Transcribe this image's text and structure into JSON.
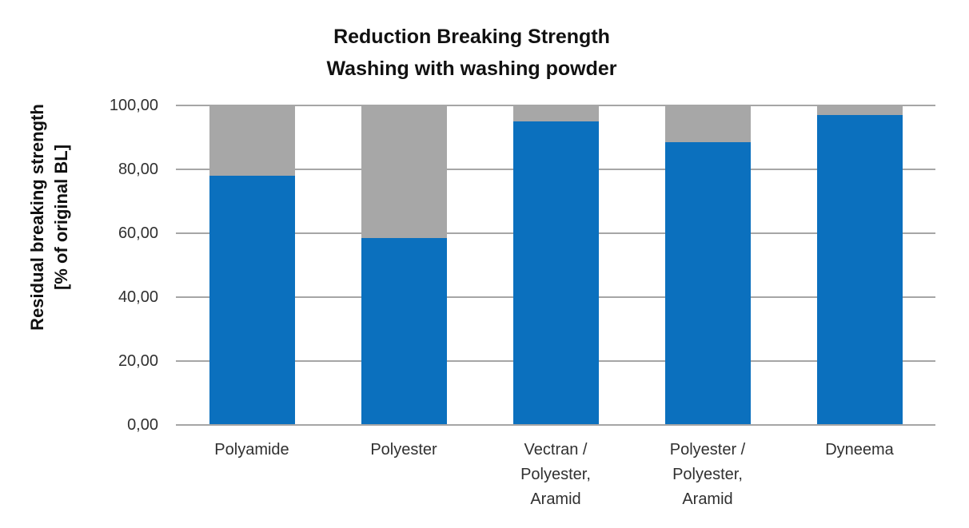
{
  "chart_data": {
    "type": "bar",
    "stacked": true,
    "title": "Reduction Breaking Strength",
    "subtitle": "Washing with washing powder",
    "y_axis_title_line1": "Residual breaking strength",
    "y_axis_title_line2": "[% of original BL]",
    "categories": [
      "Polyamide",
      "Polyester",
      "Vectran / Polyester, Aramid",
      "Polyester / Polyester, Aramid",
      "Dyneema"
    ],
    "category_label_lines": [
      [
        "Polyamide"
      ],
      [
        "Polyester"
      ],
      [
        "Vectran /",
        "Polyester,",
        "Aramid"
      ],
      [
        "Polyester /",
        "Polyester,",
        "Aramid"
      ],
      [
        "Dyneema"
      ]
    ],
    "series": [
      {
        "name": "residual-blue",
        "color": "#0b70be",
        "values": [
          78.0,
          58.5,
          95.0,
          88.5,
          97.0
        ]
      },
      {
        "name": "reduction-gray",
        "color": "#a7a7a7",
        "values": [
          22.0,
          41.5,
          5.0,
          11.5,
          3.0
        ]
      }
    ],
    "y_ticks": [
      "100,00",
      "80,00",
      "60,00",
      "40,00",
      "20,00",
      "0,00"
    ],
    "y_tick_values": [
      100,
      80,
      60,
      40,
      20,
      0
    ],
    "ylim": [
      0,
      100
    ],
    "grid": true,
    "legend": "none",
    "colors": {
      "background": "#ffffff",
      "grid_color": "#a6a6a6",
      "text_color": "#303030",
      "title_color": "#111111"
    }
  }
}
